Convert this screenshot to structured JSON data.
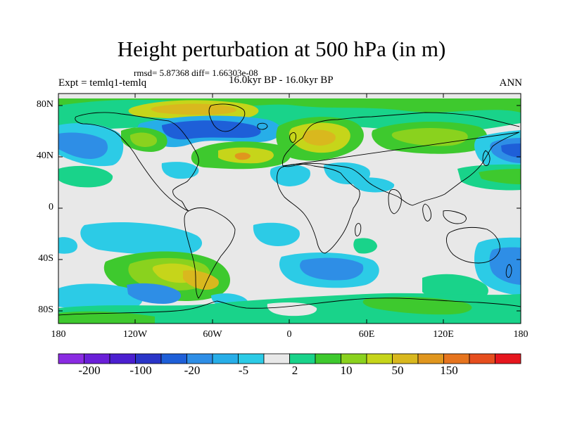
{
  "title": "Height perturbation at 500 hPa (in m)",
  "stats": "rmsd= 5.87368 diff= 1.66303e-08",
  "experiment": "Expt = temlq1-temlq",
  "period": "16.0kyr BP - 16.0kyr BP",
  "season": "ANN",
  "lat_labels": [
    "80N",
    "40N",
    "0",
    "40S",
    "80S"
  ],
  "lon_labels": [
    "180",
    "120W",
    "60W",
    "0",
    "60E",
    "120E",
    "180"
  ],
  "colorbar": {
    "colors": [
      "#8a2be2",
      "#6a1fd8",
      "#4b1fd0",
      "#2a35c8",
      "#1e5fd8",
      "#2e8ee6",
      "#27aee8",
      "#2ccbe6",
      "#e8e8e8",
      "#19d38a",
      "#3ec92e",
      "#8ad21e",
      "#c6d51a",
      "#d9b81e",
      "#e0961e",
      "#e6741e",
      "#e64e1e",
      "#e6161e"
    ],
    "labels": [
      "-200",
      "-100",
      "-20",
      "-5",
      "2",
      "10",
      "50",
      "150"
    ]
  }
}
